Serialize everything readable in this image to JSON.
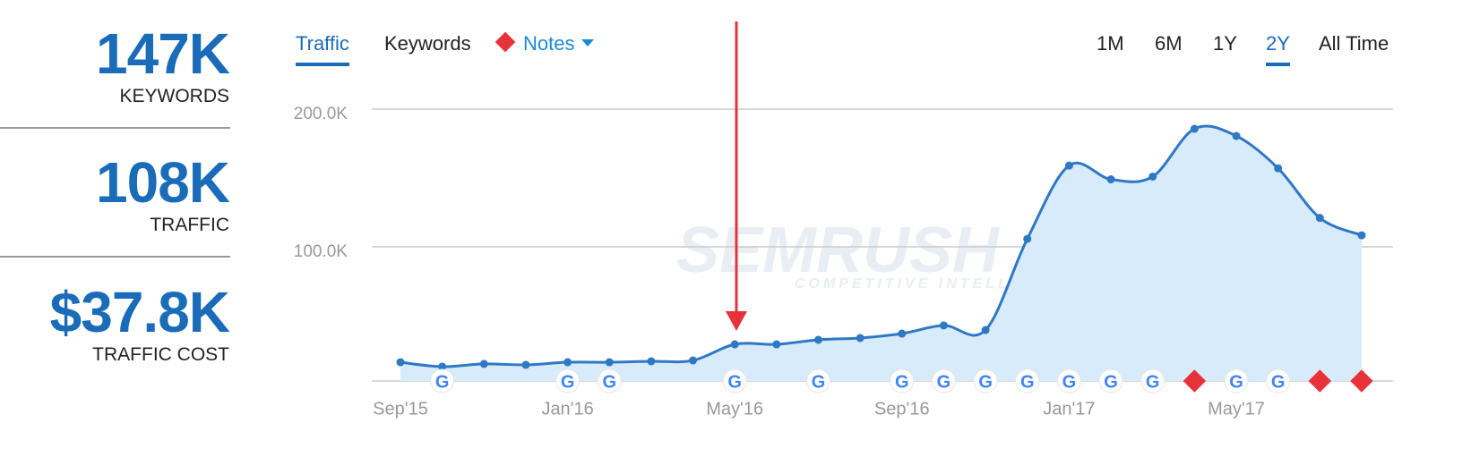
{
  "stats": [
    {
      "value": "147K",
      "label": "KEYWORDS"
    },
    {
      "value": "108K",
      "label": "TRAFFIC"
    },
    {
      "value": "$37.8K",
      "label": "TRAFFIC COST"
    }
  ],
  "tabs": [
    "Traffic",
    "Keywords",
    "Notes"
  ],
  "periods": [
    "1M",
    "6M",
    "1Y",
    "2Y",
    "All Time"
  ],
  "watermark": {
    "brand": "SEMRUSH",
    "tagline": "COMPETITIVE INTELLIGENCE"
  },
  "google_icon": "G",
  "chart_data": {
    "type": "area",
    "categories": [
      "Sep'15",
      null,
      null,
      null,
      "Jan'16",
      null,
      null,
      null,
      "May'16",
      null,
      null,
      null,
      "Sep'16",
      null,
      null,
      null,
      "Jan'17",
      null,
      null,
      null,
      "May'17",
      null,
      null,
      null
    ],
    "series": [
      {
        "name": "Traffic",
        "color": "#2f78c4",
        "values": [
          16200,
          13000,
          15000,
          14300,
          16200,
          16200,
          16900,
          17500,
          29200,
          29200,
          32500,
          33800,
          37000,
          42900,
          39600,
          105800,
          159000,
          149000,
          151000,
          185700,
          180500,
          157000,
          121000,
          108400
        ]
      }
    ],
    "ylim": [
      0,
      200000
    ],
    "yticks": [
      {
        "value": 100000,
        "label": "100.0K"
      },
      {
        "value": 200000,
        "label": "200.0K"
      }
    ],
    "grid": true
  }
}
